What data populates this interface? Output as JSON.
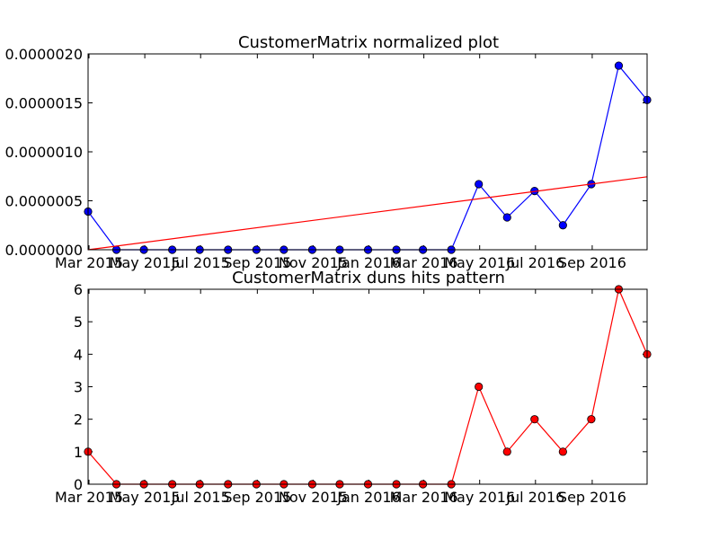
{
  "chart_data": [
    {
      "type": "line",
      "title": "CustomerMatrix normalized plot",
      "x": [
        "2015-02-28",
        "2015-03-31",
        "2015-04-30",
        "2015-05-31",
        "2015-06-30",
        "2015-07-31",
        "2015-08-31",
        "2015-09-30",
        "2015-10-31",
        "2015-11-30",
        "2015-12-31",
        "2016-01-31",
        "2016-02-29",
        "2016-03-31",
        "2016-04-30",
        "2016-05-31",
        "2016-06-30",
        "2016-07-31",
        "2016-08-31",
        "2016-09-30",
        "2016-10-31"
      ],
      "x_tick_labels": [
        "Mar 2015",
        "May 2015",
        "Jul 2015",
        "Sep 2015",
        "Nov 2015",
        "Jan 2016",
        "Mar 2016",
        "May 2016",
        "Jul 2016",
        "Sep 2016"
      ],
      "x_tick_dates": [
        "2015-03-01",
        "2015-05-01",
        "2015-07-01",
        "2015-09-01",
        "2015-11-01",
        "2016-01-01",
        "2016-03-01",
        "2016-05-01",
        "2016-07-01",
        "2016-09-01"
      ],
      "xlim": [
        "2015-02-28",
        "2016-10-31"
      ],
      "ylim": [
        0,
        2e-06
      ],
      "y_ticks": [
        "0.0000000",
        "0.0000005",
        "0.0000010",
        "0.0000015",
        "0.0000020"
      ],
      "series": [
        {
          "color": "#0000ff",
          "marker": "circle",
          "values": [
            3.9e-07,
            0,
            0,
            0,
            0,
            0,
            0,
            0,
            0,
            0,
            0,
            0,
            0,
            0,
            6.7e-07,
            3.3e-07,
            6e-07,
            2.5e-07,
            6.7e-07,
            1.88e-06,
            1.53e-06
          ]
        },
        {
          "color": "#ff0000",
          "marker": "none",
          "x": [
            "2015-02-28",
            "2016-10-31"
          ],
          "values": [
            0,
            7.45e-07
          ]
        }
      ]
    },
    {
      "type": "line",
      "title": "CustomerMatrix duns hits pattern",
      "x": [
        "2015-02-28",
        "2015-03-31",
        "2015-04-30",
        "2015-05-31",
        "2015-06-30",
        "2015-07-31",
        "2015-08-31",
        "2015-09-30",
        "2015-10-31",
        "2015-11-30",
        "2015-12-31",
        "2016-01-31",
        "2016-02-29",
        "2016-03-31",
        "2016-04-30",
        "2016-05-31",
        "2016-06-30",
        "2016-07-31",
        "2016-08-31",
        "2016-09-30",
        "2016-10-31"
      ],
      "x_tick_labels": [
        "Mar 2015",
        "May 2015",
        "Jul 2015",
        "Sep 2015",
        "Nov 2015",
        "Jan 2016",
        "Mar 2016",
        "May 2016",
        "Jul 2016",
        "Sep 2016"
      ],
      "x_tick_dates": [
        "2015-03-01",
        "2015-05-01",
        "2015-07-01",
        "2015-09-01",
        "2015-11-01",
        "2016-01-01",
        "2016-03-01",
        "2016-05-01",
        "2016-07-01",
        "2016-09-01"
      ],
      "xlim": [
        "2015-02-28",
        "2016-10-31"
      ],
      "ylim": [
        0,
        6
      ],
      "y_ticks": [
        "0",
        "1",
        "2",
        "3",
        "4",
        "5",
        "6"
      ],
      "series": [
        {
          "color": "#ff0000",
          "marker": "circle",
          "values": [
            1,
            0,
            0,
            0,
            0,
            0,
            0,
            0,
            0,
            0,
            0,
            0,
            0,
            0,
            3,
            1,
            2,
            1,
            2,
            6,
            4
          ]
        }
      ]
    }
  ]
}
